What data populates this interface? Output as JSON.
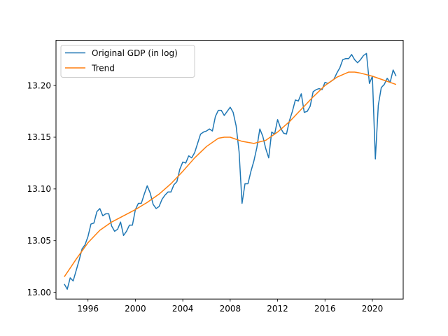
{
  "chart_data": {
    "type": "line",
    "title": "",
    "xlabel": "",
    "ylabel": "",
    "xlim": [
      1993.3,
      2022.6
    ],
    "ylim": [
      12.9935,
      13.2437
    ],
    "xticks": [
      1996,
      2000,
      2004,
      2008,
      2012,
      2016,
      2020
    ],
    "yticks": [
      13.0,
      13.05,
      13.1,
      13.15,
      13.2
    ],
    "ytick_labels": [
      "13.00",
      "13.05",
      "13.10",
      "13.15",
      "13.20"
    ],
    "grid": false,
    "legend_position": "upper-left",
    "series": [
      {
        "name": "Original GDP (in log)",
        "color": "#1f77b4",
        "x": [
          1994.0,
          1994.25,
          1994.5,
          1994.75,
          1995.0,
          1995.25,
          1995.5,
          1995.75,
          1996.0,
          1996.25,
          1996.5,
          1996.75,
          1997.0,
          1997.25,
          1997.5,
          1997.75,
          1998.0,
          1998.25,
          1998.5,
          1998.75,
          1999.0,
          1999.25,
          1999.5,
          1999.75,
          2000.0,
          2000.25,
          2000.5,
          2000.75,
          2001.0,
          2001.25,
          2001.5,
          2001.75,
          2002.0,
          2002.25,
          2002.5,
          2002.75,
          2003.0,
          2003.25,
          2003.5,
          2003.75,
          2004.0,
          2004.25,
          2004.5,
          2004.75,
          2005.0,
          2005.25,
          2005.5,
          2005.75,
          2006.0,
          2006.25,
          2006.5,
          2006.75,
          2007.0,
          2007.25,
          2007.5,
          2007.75,
          2008.0,
          2008.25,
          2008.5,
          2008.75,
          2009.0,
          2009.25,
          2009.5,
          2009.75,
          2010.0,
          2010.25,
          2010.5,
          2010.75,
          2011.0,
          2011.25,
          2011.5,
          2011.75,
          2012.0,
          2012.25,
          2012.5,
          2012.75,
          2013.0,
          2013.25,
          2013.5,
          2013.75,
          2014.0,
          2014.25,
          2014.5,
          2014.75,
          2015.0,
          2015.25,
          2015.5,
          2015.75,
          2016.0,
          2016.25,
          2016.5,
          2016.75,
          2017.0,
          2017.25,
          2017.5,
          2017.75,
          2018.0,
          2018.25,
          2018.5,
          2018.75,
          2019.0,
          2019.25,
          2019.5,
          2019.75,
          2020.0,
          2020.25,
          2020.5,
          2020.75,
          2021.0,
          2021.25,
          2021.5,
          2021.75,
          2022.0
        ],
        "values": [
          13.008,
          13.003,
          13.014,
          13.011,
          13.021,
          13.031,
          13.042,
          13.046,
          13.054,
          13.066,
          13.067,
          13.078,
          13.081,
          13.074,
          13.076,
          13.076,
          13.064,
          13.059,
          13.061,
          13.068,
          13.055,
          13.059,
          13.065,
          13.065,
          13.08,
          13.086,
          13.086,
          13.095,
          13.103,
          13.096,
          13.085,
          13.081,
          13.083,
          13.09,
          13.094,
          13.097,
          13.097,
          13.104,
          13.107,
          13.119,
          13.126,
          13.125,
          13.132,
          13.13,
          13.135,
          13.144,
          13.153,
          13.155,
          13.156,
          13.158,
          13.156,
          13.17,
          13.176,
          13.176,
          13.171,
          13.175,
          13.179,
          13.174,
          13.161,
          13.136,
          13.086,
          13.105,
          13.105,
          13.117,
          13.127,
          13.14,
          13.158,
          13.151,
          13.139,
          13.13,
          13.155,
          13.153,
          13.167,
          13.159,
          13.154,
          13.153,
          13.166,
          13.175,
          13.186,
          13.185,
          13.192,
          13.174,
          13.175,
          13.18,
          13.194,
          13.196,
          13.197,
          13.196,
          13.203,
          13.202,
          13.204,
          13.206,
          13.212,
          13.217,
          13.225,
          13.226,
          13.226,
          13.23,
          13.225,
          13.222,
          13.225,
          13.229,
          13.231,
          13.202,
          13.209,
          13.129,
          13.181,
          13.198,
          13.201,
          13.207,
          13.203,
          13.215,
          13.209
        ]
      },
      {
        "name": "Trend",
        "color": "#ff7f0e",
        "x": [
          1994.0,
          1995.0,
          1996.0,
          1997.0,
          1998.0,
          1999.0,
          2000.0,
          2001.0,
          2002.0,
          2003.0,
          2004.0,
          2005.0,
          2006.0,
          2007.0,
          2007.5,
          2008.0,
          2009.0,
          2010.0,
          2011.0,
          2012.0,
          2013.0,
          2014.0,
          2015.0,
          2016.0,
          2017.0,
          2018.0,
          2018.5,
          2019.0,
          2020.0,
          2021.0,
          2022.0
        ],
        "values": [
          13.015,
          13.032,
          13.048,
          13.06,
          13.068,
          13.074,
          13.08,
          13.087,
          13.095,
          13.105,
          13.117,
          13.13,
          13.141,
          13.149,
          13.15,
          13.15,
          13.146,
          13.144,
          13.147,
          13.155,
          13.165,
          13.177,
          13.189,
          13.2,
          13.208,
          13.213,
          13.213,
          13.212,
          13.209,
          13.205,
          13.201
        ]
      }
    ]
  }
}
